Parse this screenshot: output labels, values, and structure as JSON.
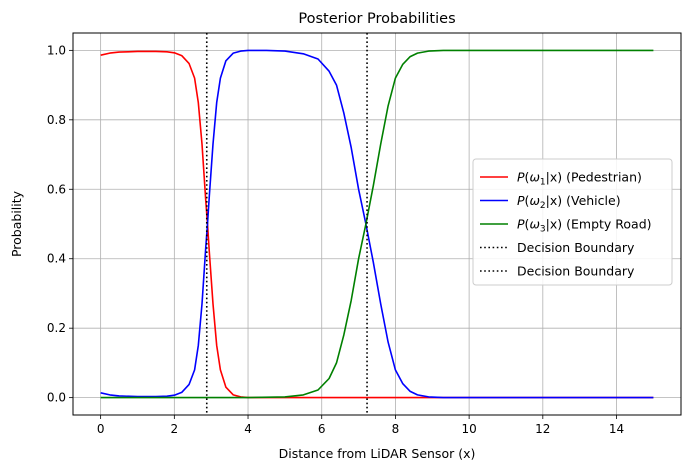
{
  "chart_data": {
    "type": "line",
    "title": "Posterior Probabilities",
    "xlabel": "Distance from LiDAR Sensor (x)",
    "ylabel": "Probability",
    "xlim": [
      -0.75,
      15.75
    ],
    "ylim": [
      -0.05,
      1.05
    ],
    "xticks": [
      0,
      2,
      4,
      6,
      8,
      10,
      12,
      14
    ],
    "yticks": [
      0.0,
      0.2,
      0.4,
      0.6,
      0.8,
      1.0
    ],
    "xtick_labels": [
      "0",
      "2",
      "4",
      "6",
      "8",
      "10",
      "12",
      "14"
    ],
    "ytick_labels": [
      "0.0",
      "0.2",
      "0.4",
      "0.6",
      "0.8",
      "1.0"
    ],
    "grid": true,
    "legend_position": "center-right",
    "series": [
      {
        "name": "P(ω1|x) (Pedestrian)",
        "name_parts": {
          "func": "P",
          "greek": "ω",
          "sub": "1",
          "rest": "|x)",
          "desc": " (Pedestrian)"
        },
        "color": "#ff0000",
        "points": [
          [
            0,
            0.986
          ],
          [
            0.25,
            0.992
          ],
          [
            0.5,
            0.995
          ],
          [
            0.75,
            0.996
          ],
          [
            1,
            0.997
          ],
          [
            1.5,
            0.997
          ],
          [
            1.8,
            0.996
          ],
          [
            2.0,
            0.993
          ],
          [
            2.2,
            0.985
          ],
          [
            2.4,
            0.962
          ],
          [
            2.55,
            0.92
          ],
          [
            2.65,
            0.85
          ],
          [
            2.75,
            0.73
          ],
          [
            2.85,
            0.57
          ],
          [
            2.9,
            0.5
          ],
          [
            2.95,
            0.42
          ],
          [
            3.05,
            0.27
          ],
          [
            3.15,
            0.15
          ],
          [
            3.25,
            0.08
          ],
          [
            3.4,
            0.03
          ],
          [
            3.6,
            0.008
          ],
          [
            3.8,
            0.002
          ],
          [
            4.0,
            0.0
          ],
          [
            15,
            0.0
          ]
        ]
      },
      {
        "name": "P(ω2|x) (Vehicle)",
        "name_parts": {
          "func": "P",
          "greek": "ω",
          "sub": "2",
          "rest": "|x)",
          "desc": " (Vehicle)"
        },
        "color": "#0000ff",
        "points": [
          [
            0,
            0.014
          ],
          [
            0.25,
            0.008
          ],
          [
            0.5,
            0.005
          ],
          [
            1,
            0.003
          ],
          [
            1.5,
            0.003
          ],
          [
            1.8,
            0.004
          ],
          [
            2.0,
            0.007
          ],
          [
            2.2,
            0.015
          ],
          [
            2.4,
            0.038
          ],
          [
            2.55,
            0.08
          ],
          [
            2.65,
            0.15
          ],
          [
            2.75,
            0.27
          ],
          [
            2.85,
            0.43
          ],
          [
            2.9,
            0.5
          ],
          [
            2.95,
            0.58
          ],
          [
            3.05,
            0.73
          ],
          [
            3.15,
            0.85
          ],
          [
            3.25,
            0.92
          ],
          [
            3.4,
            0.97
          ],
          [
            3.6,
            0.992
          ],
          [
            3.8,
            0.998
          ],
          [
            4.0,
            1.0
          ],
          [
            4.5,
            1.0
          ],
          [
            5.0,
            0.998
          ],
          [
            5.5,
            0.99
          ],
          [
            5.9,
            0.975
          ],
          [
            6.2,
            0.94
          ],
          [
            6.4,
            0.9
          ],
          [
            6.6,
            0.82
          ],
          [
            6.8,
            0.72
          ],
          [
            7.0,
            0.6
          ],
          [
            7.2,
            0.5
          ],
          [
            7.4,
            0.39
          ],
          [
            7.6,
            0.27
          ],
          [
            7.8,
            0.16
          ],
          [
            8.0,
            0.08
          ],
          [
            8.2,
            0.04
          ],
          [
            8.4,
            0.018
          ],
          [
            8.6,
            0.008
          ],
          [
            8.9,
            0.002
          ],
          [
            9.3,
            0.0
          ],
          [
            15,
            0.0
          ]
        ]
      },
      {
        "name": "P(ω3|x) (Empty Road)",
        "name_parts": {
          "func": "P",
          "greek": "ω",
          "sub": "3",
          "rest": "|x)",
          "desc": " (Empty Road)"
        },
        "color": "#008000",
        "points": [
          [
            0,
            0.0
          ],
          [
            4.0,
            0.0
          ],
          [
            5.0,
            0.002
          ],
          [
            5.5,
            0.008
          ],
          [
            5.9,
            0.022
          ],
          [
            6.2,
            0.055
          ],
          [
            6.4,
            0.1
          ],
          [
            6.6,
            0.18
          ],
          [
            6.8,
            0.28
          ],
          [
            7.0,
            0.4
          ],
          [
            7.2,
            0.5
          ],
          [
            7.4,
            0.61
          ],
          [
            7.6,
            0.73
          ],
          [
            7.8,
            0.84
          ],
          [
            8.0,
            0.92
          ],
          [
            8.2,
            0.96
          ],
          [
            8.4,
            0.982
          ],
          [
            8.6,
            0.992
          ],
          [
            8.9,
            0.998
          ],
          [
            9.3,
            1.0
          ],
          [
            15,
            1.0
          ]
        ]
      }
    ],
    "vlines": [
      {
        "x": 2.88,
        "label": "Decision Boundary",
        "style": "dotted",
        "color": "#000000"
      },
      {
        "x": 7.23,
        "label": "Decision Boundary",
        "style": "dotted",
        "color": "#000000"
      }
    ]
  }
}
